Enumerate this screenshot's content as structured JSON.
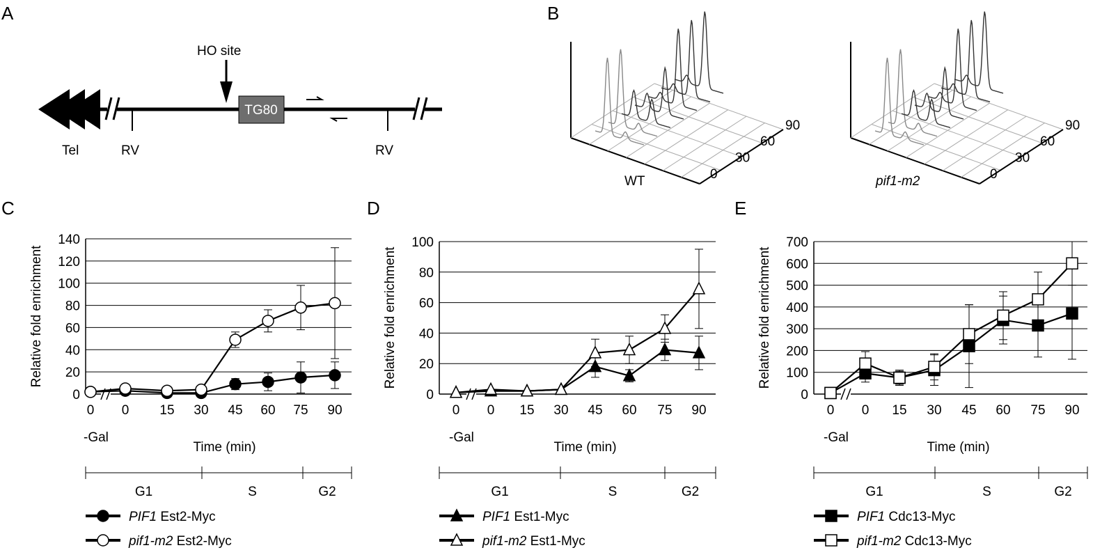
{
  "panelA": {
    "letter": "A",
    "ho_site": "HO site",
    "tg80": "TG80",
    "tel": "Tel",
    "rv_left": "RV",
    "rv_right": "RV"
  },
  "panelB": {
    "letter": "B",
    "left_label": "WT",
    "right_label": "pif1-m2",
    "depth_ticks": [
      "0",
      "30",
      "60",
      "90"
    ]
  },
  "chart_data": [
    {
      "panel": "C",
      "type": "line",
      "ylabel": "Relative fold enrichment",
      "xlabel": "Time (min)",
      "pre_label": "-Gal",
      "x": [
        "0",
        "0",
        "15",
        "30",
        "45",
        "60",
        "75",
        "90"
      ],
      "ylim": [
        0,
        140
      ],
      "yticks": [
        0,
        20,
        40,
        60,
        80,
        100,
        120,
        140
      ],
      "phases": [
        "G1",
        "S",
        "G2"
      ],
      "series": [
        {
          "name_gene": "PIF1",
          "name_rest": " Est2-Myc",
          "marker": "circle",
          "filled": true,
          "values": [
            2,
            3,
            1,
            1,
            9,
            11,
            15,
            17
          ],
          "err": [
            0,
            0,
            0,
            0,
            5,
            8,
            14,
            12
          ]
        },
        {
          "name_gene": "pif1-m2",
          "name_rest": " Est2-Myc",
          "marker": "circle",
          "filled": false,
          "values": [
            2,
            5,
            3,
            4,
            49,
            66,
            78,
            82
          ],
          "err": [
            0,
            0,
            0,
            0,
            7,
            10,
            20,
            50
          ]
        }
      ]
    },
    {
      "panel": "D",
      "type": "line",
      "ylabel": "Relative fold enrichment",
      "xlabel": "Time (min)",
      "pre_label": "-Gal",
      "x": [
        "0",
        "0",
        "15",
        "30",
        "45",
        "60",
        "75",
        "90"
      ],
      "ylim": [
        0,
        100
      ],
      "yticks": [
        0,
        20,
        40,
        60,
        80,
        100
      ],
      "phases": [
        "G1",
        "S",
        "G2"
      ],
      "series": [
        {
          "name_gene": "PIF1",
          "name_rest": " Est1-Myc",
          "marker": "triangle",
          "filled": true,
          "values": [
            1,
            2,
            2,
            3,
            18,
            12,
            29,
            27
          ],
          "err": [
            0,
            0,
            0,
            0,
            7,
            4,
            7,
            11
          ]
        },
        {
          "name_gene": "pif1-m2",
          "name_rest": " Est1-Myc",
          "marker": "triangle",
          "filled": false,
          "values": [
            1,
            3,
            2,
            3,
            27,
            29,
            43,
            69
          ],
          "err": [
            0,
            0,
            0,
            0,
            9,
            9,
            9,
            26
          ]
        }
      ]
    },
    {
      "panel": "E",
      "type": "line",
      "ylabel": "Relative fold enrichment",
      "xlabel": "Time (min)",
      "pre_label": "-Gal",
      "x": [
        "0",
        "0",
        "15",
        "30",
        "45",
        "60",
        "75",
        "90"
      ],
      "ylim": [
        0,
        700
      ],
      "yticks": [
        0,
        100,
        200,
        300,
        400,
        500,
        600,
        700
      ],
      "phases": [
        "G1",
        "S",
        "G2"
      ],
      "series": [
        {
          "name_gene": "PIF1",
          "name_rest": " Cdc13-Myc",
          "marker": "square",
          "filled": true,
          "values": [
            5,
            95,
            75,
            110,
            220,
            340,
            315,
            370
          ],
          "err": [
            0,
            40,
            30,
            70,
            190,
            110,
            145,
            210
          ]
        },
        {
          "name_gene": "pif1-m2",
          "name_rest": " Cdc13-Myc",
          "marker": "square",
          "filled": false,
          "values": [
            5,
            140,
            75,
            125,
            275,
            360,
            435,
            600
          ],
          "err": [
            0,
            55,
            35,
            60,
            135,
            110,
            125,
            100
          ]
        }
      ]
    }
  ]
}
